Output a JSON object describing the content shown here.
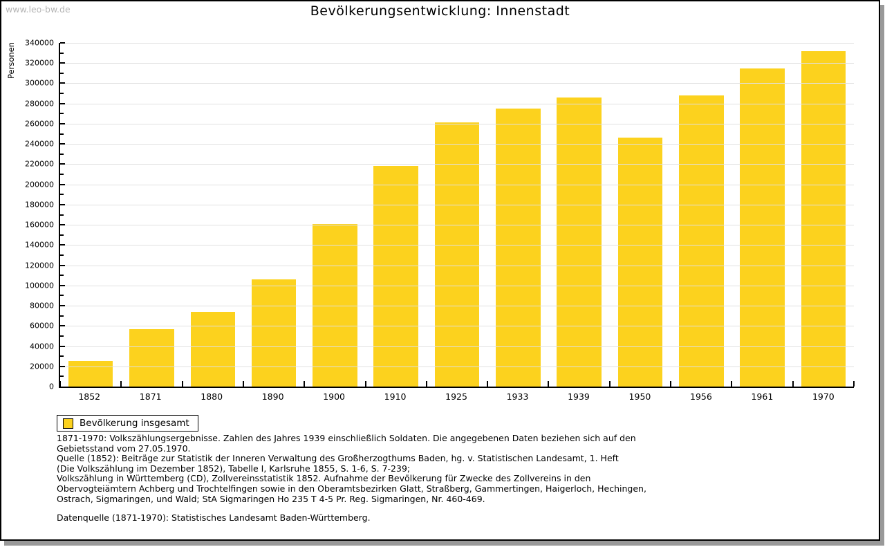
{
  "watermark": "www.leo-bw.de",
  "title": "Bevölkerungsentwicklung: Innenstadt",
  "chart_data": {
    "type": "bar",
    "title": "Bevölkerungsentwicklung: Innenstadt",
    "xlabel": "",
    "ylabel": "Personen",
    "categories": [
      "1852",
      "1871",
      "1880",
      "1890",
      "1900",
      "1910",
      "1925",
      "1933",
      "1939",
      "1950",
      "1956",
      "1961",
      "1970"
    ],
    "values": [
      25000,
      57000,
      74000,
      106000,
      161000,
      218000,
      261000,
      275000,
      286000,
      246000,
      288000,
      315000,
      332000
    ],
    "series_name": "Bevölkerung insgesamt",
    "ylim": [
      0,
      340000
    ],
    "ytick_step": 20000,
    "minor_tick_step": 10000,
    "yticks": [
      0,
      20000,
      40000,
      60000,
      80000,
      100000,
      120000,
      140000,
      160000,
      180000,
      200000,
      220000,
      240000,
      260000,
      280000,
      300000,
      320000,
      340000
    ],
    "grid": true,
    "legend_position": "bottom-left",
    "bar_color": "#fcd21e",
    "gridline_color": "#e0e0e0"
  },
  "legend": {
    "label": "Bevölkerung insgesamt",
    "swatch_color": "#fcd21e"
  },
  "footnotes": [
    "1871-1970: Volkszählungsergebnisse. Zahlen des Jahres 1939 einschließlich Soldaten. Die angegebenen Daten beziehen sich auf den",
    "Gebietsstand vom 27.05.1970.",
    "Quelle (1852): Beiträge zur Statistik der Inneren Verwaltung des Großherzogthums Baden, hg. v. Statistischen Landesamt, 1. Heft",
    "(Die Volkszählung im Dezember 1852), Tabelle I, Karlsruhe 1855, S. 1-6, S. 7-239;",
    "Volkszählung in Württemberg (CD), Zollvereinsstatistik 1852. Aufnahme der Bevölkerung für Zwecke des Zollvereins in den",
    "Obervogteiämtern Achberg und Trochtelfingen sowie in den Oberamtsbezirken Glatt, Straßberg, Gammertingen, Haigerloch, Hechingen,",
    "Ostrach, Sigmaringen, und Wald; StA Sigmaringen Ho 235 T 4-5 Pr. Reg. Sigmaringen, Nr. 460-469."
  ],
  "datasource": "Datenquelle (1871-1970): Statistisches Landesamt Baden-Württemberg."
}
